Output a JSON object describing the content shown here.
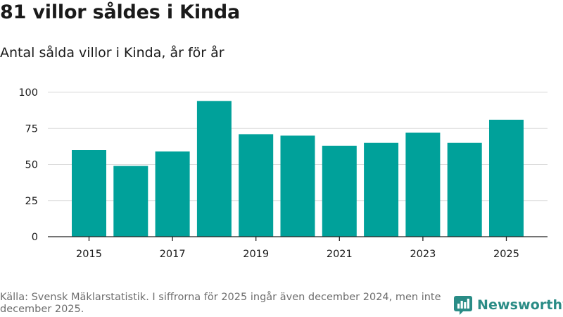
{
  "header": {
    "title": "81 villor såldes i Kinda",
    "subtitle": "Antal sålda villor i Kinda, år för år"
  },
  "chart_data": {
    "type": "bar",
    "categories": [
      "2015",
      "2016",
      "2017",
      "2018",
      "2019",
      "2020",
      "2021",
      "2022",
      "2023",
      "2024",
      "2025"
    ],
    "values": [
      60,
      49,
      59,
      94,
      71,
      70,
      63,
      65,
      72,
      65,
      81
    ],
    "x_tick_labels": [
      "2015",
      "2017",
      "2019",
      "2021",
      "2023",
      "2025"
    ],
    "y_ticks": [
      0,
      25,
      50,
      75,
      100
    ],
    "ylim": [
      0,
      100
    ],
    "xlabel": "",
    "ylabel": "",
    "grid": true,
    "bar_color": "#00a19a"
  },
  "footer": {
    "source": "Källa: Svensk Mäklarstatistik. I siffrorna för 2025 ingår även december 2024, men inte december 2025."
  },
  "brand": {
    "name": "Newsworthy",
    "icon": "newsworthy-logo-icon",
    "color": "#2a8c86"
  }
}
